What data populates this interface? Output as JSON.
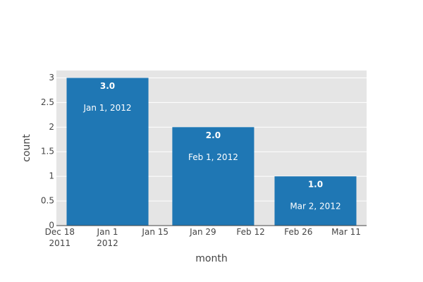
{
  "chart_data": {
    "type": "bar",
    "x": [
      "2012-01-01",
      "2012-02-01",
      "2012-03-02"
    ],
    "values": [
      3,
      2,
      1
    ],
    "value_labels": [
      "3.0",
      "2.0",
      "1.0"
    ],
    "bar_texts": [
      "Jan 1, 2012",
      "Feb 1, 2012",
      "Mar 2, 2012"
    ],
    "color": "#1f77b4",
    "x_label": "month",
    "y_label": "count",
    "xlim": [
      "2011-12-17",
      "2012-03-17"
    ],
    "xticks": [
      {
        "value": "2011-12-18",
        "label": [
          "Dec 18",
          "2011"
        ]
      },
      {
        "value": "2012-01-01",
        "label": [
          "Jan 1",
          "2012"
        ]
      },
      {
        "value": "2012-01-15",
        "label": [
          "Jan 15"
        ]
      },
      {
        "value": "2012-01-29",
        "label": [
          "Jan 29"
        ]
      },
      {
        "value": "2012-02-12",
        "label": [
          "Feb 12"
        ]
      },
      {
        "value": "2012-02-26",
        "label": [
          "Feb 26"
        ]
      },
      {
        "value": "2012-03-11",
        "label": [
          "Mar 11"
        ]
      }
    ],
    "ylim": [
      0,
      3.15
    ],
    "yticks": [
      0,
      0.5,
      1,
      1.5,
      2,
      2.5,
      3
    ],
    "grid": true
  }
}
